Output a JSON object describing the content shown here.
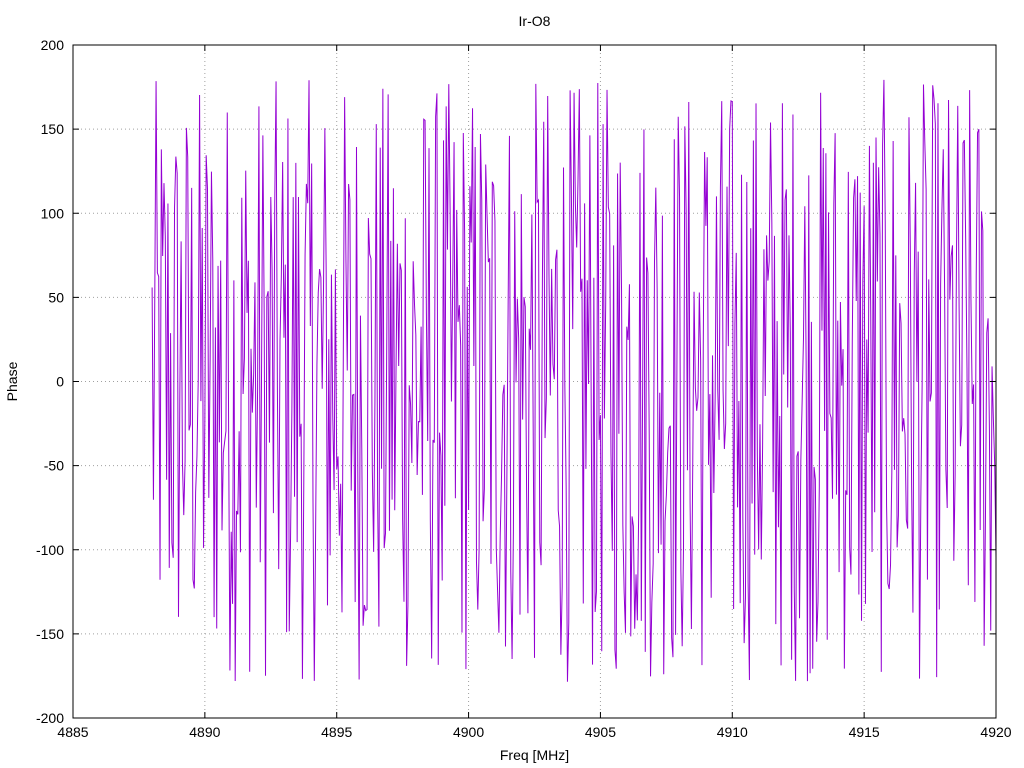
{
  "chart_data": {
    "type": "line",
    "title": "Ir-O8",
    "xlabel": "Freq [MHz]",
    "ylabel": "Phase",
    "xlim": [
      4885,
      4920
    ],
    "ylim": [
      -200,
      200
    ],
    "x_ticks": [
      4885,
      4890,
      4895,
      4900,
      4905,
      4910,
      4915,
      4920
    ],
    "y_ticks": [
      -200,
      -150,
      -100,
      -50,
      0,
      50,
      100,
      150,
      200
    ],
    "grid": true,
    "legend": "none",
    "series": [
      {
        "color": "#9400d3",
        "x_start": 4888.0,
        "x_end": 4920.0,
        "x_step": 0.05,
        "y_wrap": [
          -180,
          180
        ],
        "y_approx_range": [
          -180,
          180
        ],
        "note_values": "phase wraps between -180 and 180"
      }
    ]
  }
}
